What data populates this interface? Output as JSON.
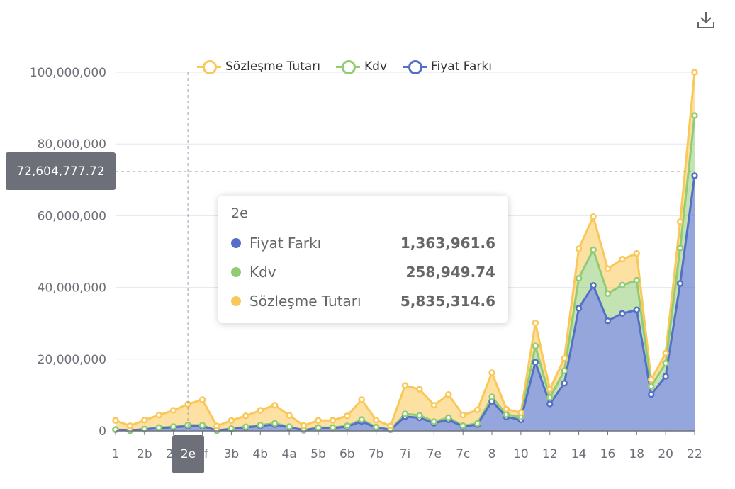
{
  "toolbox": {
    "download_icon": "download-icon"
  },
  "legend": [
    {
      "name": "Sözleşme Tutarı",
      "color": "#fac858"
    },
    {
      "name": "Kdv",
      "color": "#91cc75"
    },
    {
      "name": "Fiyat Farkı",
      "color": "#5470c6"
    }
  ],
  "tooltip": {
    "title": "2e",
    "rows": [
      {
        "name": "Fiyat Farkı",
        "value": "1,363,961.6",
        "color": "#5470c6"
      },
      {
        "name": "Kdv",
        "value": "258,949.74",
        "color": "#91cc75"
      },
      {
        "name": "Sözleşme Tutarı",
        "value": "5,835,314.6",
        "color": "#fac858"
      }
    ]
  },
  "crosshair": {
    "y_value_label": "72,604,777.72",
    "x_label": "2e"
  },
  "chart_data": {
    "type": "area",
    "stacked": true,
    "title": "",
    "xlabel": "",
    "ylabel": "",
    "ylim": [
      0,
      100000000
    ],
    "yticks": [
      "0",
      "20,000,000",
      "40,000,000",
      "60,000,000",
      "80,000,000",
      "100,000,000"
    ],
    "grid": true,
    "legend_position": "top",
    "categories": [
      "1",
      "",
      "2b",
      "",
      "2d",
      "2e",
      "2f",
      "",
      "3b",
      "",
      "4b",
      "",
      "4a",
      "",
      "5b",
      "",
      "6b",
      "",
      "7b",
      "",
      "7i",
      "",
      "7e",
      "",
      "7c",
      "",
      "8",
      "",
      "10",
      "",
      "12",
      "",
      "14",
      "",
      "16",
      "",
      "18",
      "",
      "20",
      "",
      "22"
    ],
    "series": [
      {
        "name": "Fiyat Farkı",
        "color": "#5470c6",
        "values": [
          340000,
          120000,
          450000,
          780000,
          1000000,
          1363961.6,
          1330000,
          120000,
          550000,
          950000,
          1380000,
          1770000,
          1000000,
          220000,
          780000,
          800000,
          1210000,
          2660000,
          880000,
          340000,
          3980000,
          3660000,
          2160000,
          3110000,
          1210000,
          1770000,
          8300000,
          3890000,
          3100000,
          19170000,
          7510000,
          13300000,
          34190000,
          40570000,
          30690000,
          32750000,
          33740000,
          10140000,
          15220000,
          41110000,
          71150000
        ]
      },
      {
        "name": "Kdv",
        "color": "#91cc75",
        "values": [
          60000,
          20000,
          80000,
          150000,
          190000,
          258949.74,
          250000,
          20000,
          100000,
          180000,
          260000,
          340000,
          190000,
          40000,
          150000,
          150000,
          230000,
          500000,
          170000,
          60000,
          760000,
          690000,
          410000,
          590000,
          230000,
          340000,
          1190000,
          660000,
          790000,
          4490000,
          1780000,
          3440000,
          8360000,
          9960000,
          7590000,
          7900000,
          8220000,
          2310000,
          3610000,
          9880000,
          16790000
        ]
      },
      {
        "name": "Sözleşme Tutarı",
        "color": "#fac858",
        "values": [
          2510000,
          1300000,
          2490000,
          3480000,
          4540000,
          5835314.6,
          7120000,
          1240000,
          2260000,
          3080000,
          4090000,
          5060000,
          3160000,
          1260000,
          1980000,
          2000000,
          2770000,
          5540000,
          1970000,
          980000,
          7910000,
          7250000,
          4600000,
          6440000,
          2970000,
          3760000,
          6720000,
          1520000,
          1190000,
          6440000,
          2310000,
          3480000,
          8240000,
          9210000,
          6920000,
          7240000,
          7510000,
          1840000,
          2850000,
          7310000,
          12060000
        ]
      }
    ],
    "highlighted_category": "2e"
  }
}
